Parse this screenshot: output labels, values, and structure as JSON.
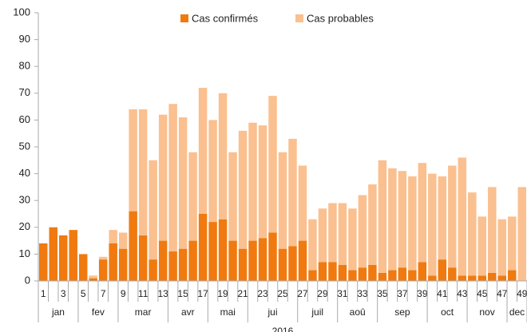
{
  "chart_data": {
    "type": "stacked_bar",
    "categories": [
      "1",
      null,
      "3",
      null,
      "5",
      null,
      "7",
      null,
      "9",
      null,
      "11",
      null,
      "13",
      null,
      "15",
      null,
      "17",
      null,
      "19",
      null,
      "21",
      null,
      "23",
      null,
      "25",
      null,
      "27",
      null,
      "29",
      null,
      "31",
      null,
      "33",
      null,
      "35",
      null,
      "37",
      null,
      "39",
      null,
      "41",
      null,
      "43",
      null,
      "45",
      null,
      "47",
      null,
      "49"
    ],
    "x_groups": [
      {
        "label": "jan",
        "span": 4
      },
      {
        "label": "fev",
        "span": 4
      },
      {
        "label": "mar",
        "span": 5
      },
      {
        "label": "avr",
        "span": 4
      },
      {
        "label": "mai",
        "span": 4
      },
      {
        "label": "jui",
        "span": 5
      },
      {
        "label": "juil",
        "span": 4
      },
      {
        "label": "aoû",
        "span": 4
      },
      {
        "label": "sep",
        "span": 5
      },
      {
        "label": "oct",
        "span": 4
      },
      {
        "label": "nov",
        "span": 4
      },
      {
        "label": "dec",
        "span": 2
      }
    ],
    "x_year": "2016",
    "series": [
      {
        "name": "Cas confirmés",
        "color": "#f07a10",
        "values": [
          14,
          20,
          17,
          19,
          10,
          1,
          8,
          14,
          12,
          26,
          17,
          8,
          15,
          11,
          12,
          15,
          25,
          22,
          23,
          15,
          12,
          15,
          16,
          18,
          12,
          13,
          15,
          4,
          7,
          7,
          6,
          4,
          5,
          6,
          3,
          4,
          5,
          4,
          7,
          2,
          8,
          5,
          2,
          2,
          2,
          3,
          2,
          4,
          0
        ]
      },
      {
        "name": "Cas probables",
        "color": "#fac090",
        "values": [
          0,
          0,
          0,
          0,
          0,
          1,
          1,
          5,
          6,
          38,
          47,
          37,
          47,
          55,
          49,
          33,
          47,
          38,
          47,
          33,
          44,
          44,
          42,
          51,
          36,
          40,
          28,
          19,
          20,
          22,
          23,
          23,
          27,
          30,
          42,
          38,
          36,
          35,
          37,
          38,
          31,
          38,
          44,
          31,
          22,
          32,
          21,
          20,
          35
        ]
      }
    ],
    "ylim": [
      0,
      100
    ],
    "yticks": [
      0,
      10,
      20,
      30,
      40,
      50,
      60,
      70,
      80,
      90,
      100
    ],
    "grid": false,
    "legend": "top"
  }
}
